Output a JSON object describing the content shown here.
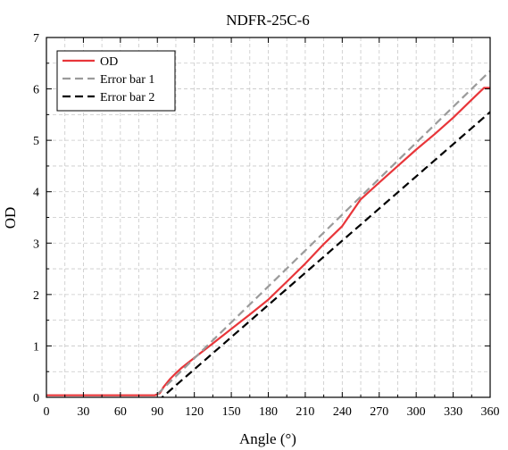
{
  "chart_data": {
    "type": "line",
    "title": "NDFR-25C-6",
    "xlabel": "Angle (°)",
    "ylabel": "OD",
    "xlim": [
      0,
      360
    ],
    "ylim": [
      0,
      7
    ],
    "xticks": [
      0,
      30,
      60,
      90,
      120,
      150,
      180,
      210,
      240,
      270,
      300,
      330,
      360
    ],
    "yticks": [
      0,
      1,
      2,
      3,
      4,
      5,
      6,
      7
    ],
    "grid": true,
    "legend_position": "top-left",
    "series": [
      {
        "name": "OD",
        "color": "#e8363a",
        "dash": "solid",
        "x": [
          0,
          88,
          92,
          95,
          100,
          105,
          110,
          120,
          135,
          150,
          165,
          180,
          195,
          210,
          225,
          240,
          255,
          270,
          285,
          300,
          315,
          330,
          345,
          355,
          360
        ],
        "y": [
          0.04,
          0.04,
          0.08,
          0.2,
          0.35,
          0.47,
          0.58,
          0.77,
          1.05,
          1.33,
          1.61,
          1.9,
          2.25,
          2.6,
          2.98,
          3.33,
          3.85,
          4.18,
          4.5,
          4.82,
          5.12,
          5.44,
          5.79,
          6.02,
          6.02
        ]
      },
      {
        "name": "Error bar 1",
        "color": "#9b9b9b",
        "dash": "dashed",
        "x": [
          90,
          360
        ],
        "y": [
          0.06,
          6.35
        ]
      },
      {
        "name": "Error bar 2",
        "color": "#000000",
        "dash": "dashed",
        "x": [
          90,
          360
        ],
        "y": [
          -0.08,
          5.55
        ]
      }
    ]
  }
}
